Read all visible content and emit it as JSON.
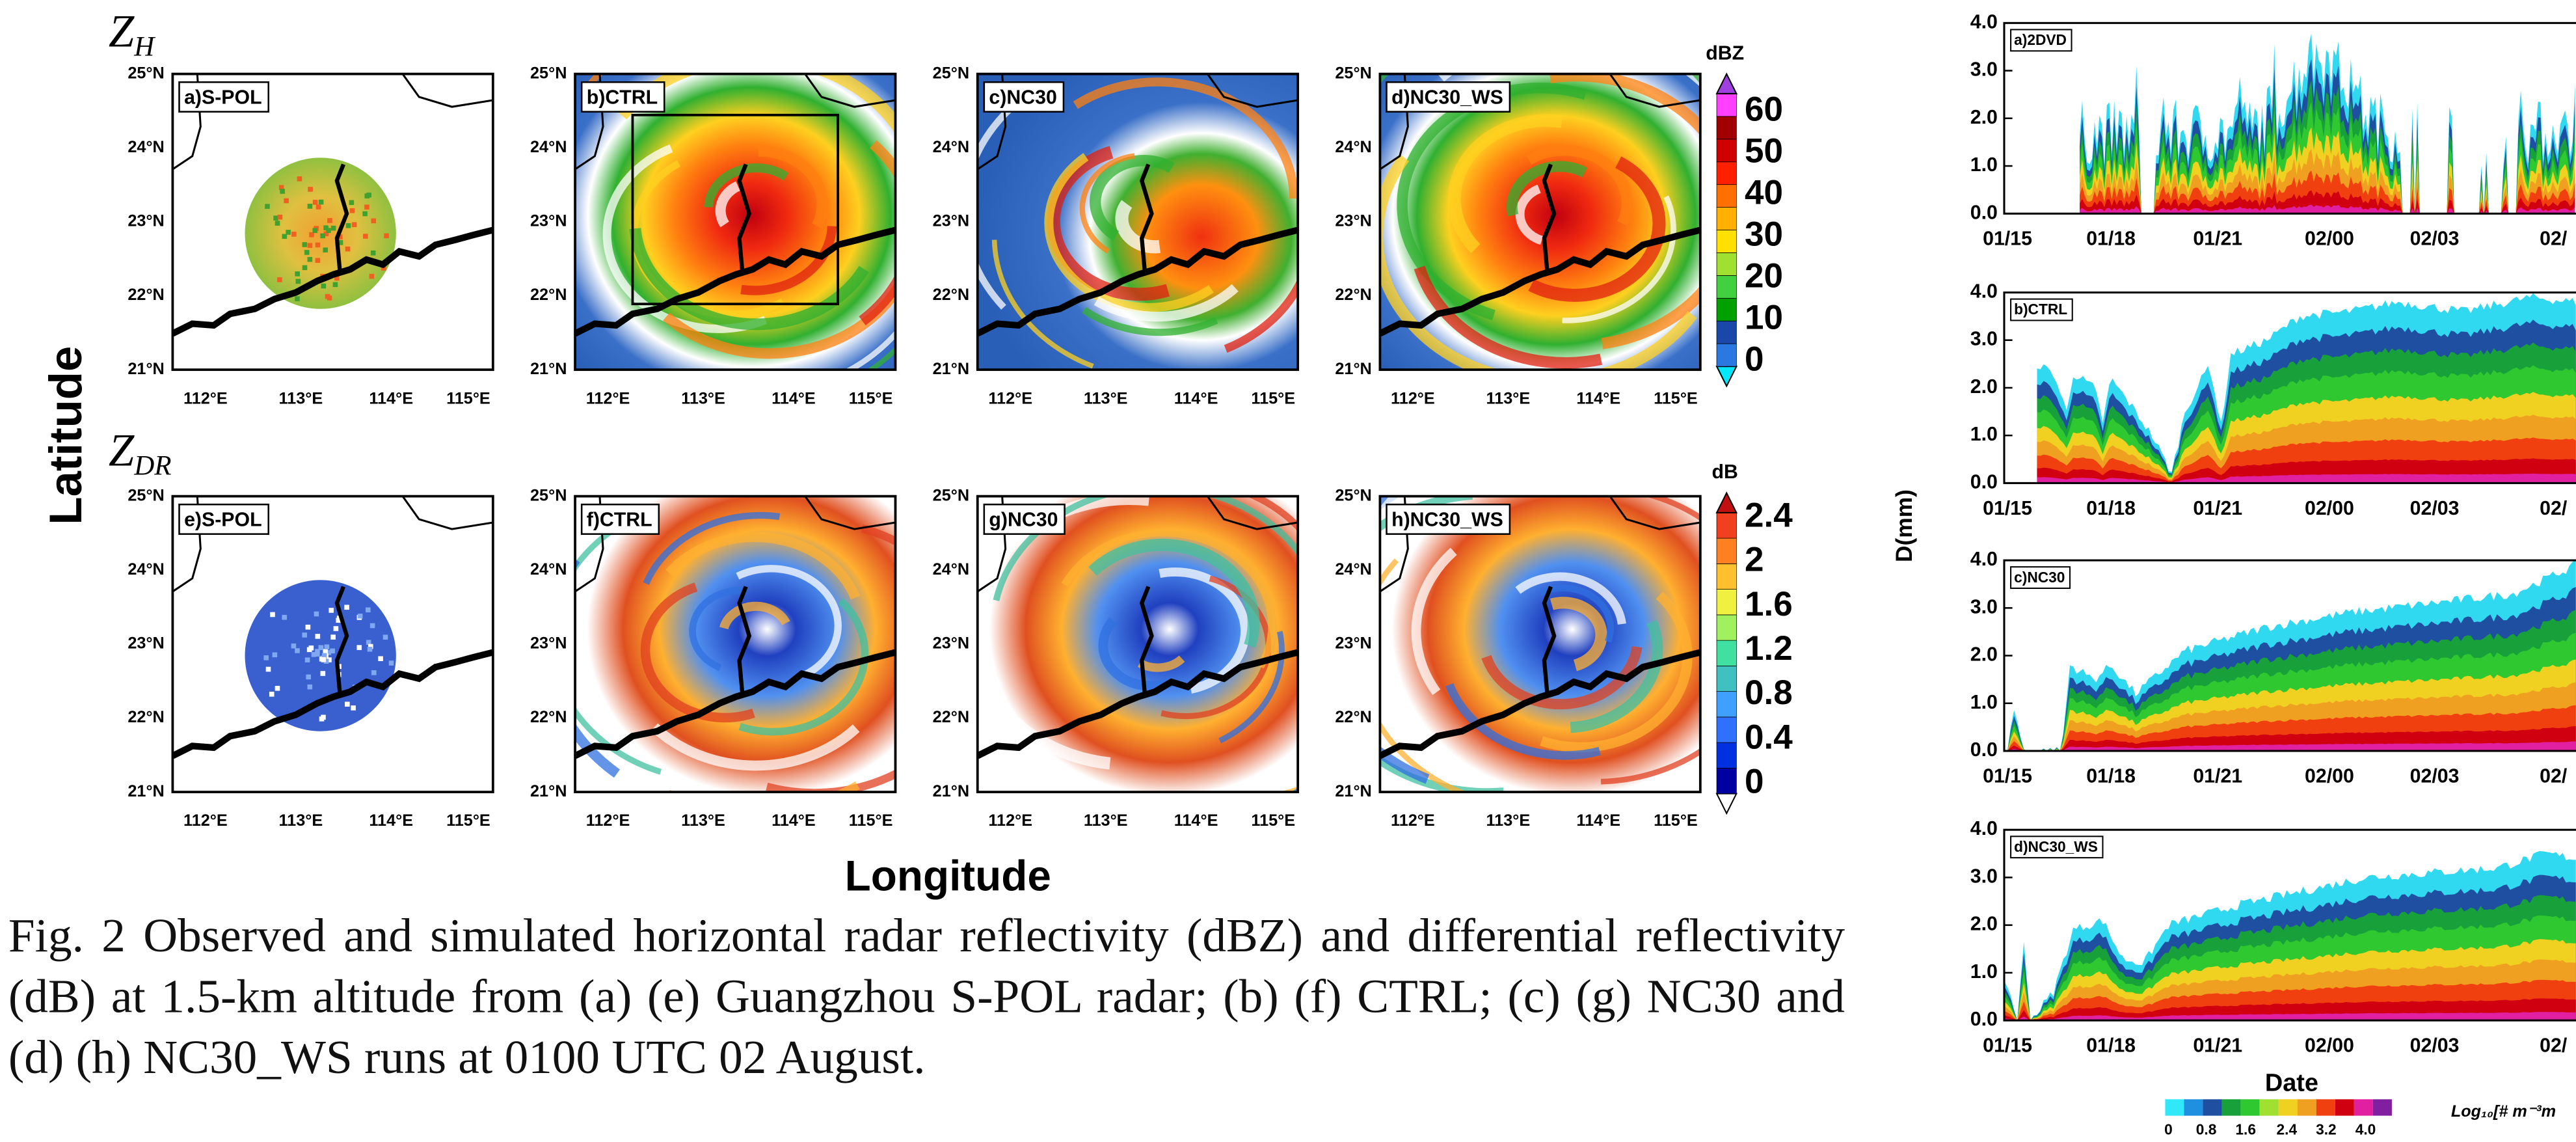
{
  "left_figure": {
    "row_titles": [
      {
        "symbol": "Z",
        "subscript": "H"
      },
      {
        "symbol": "Z",
        "subscript": "DR"
      }
    ],
    "panels": [
      {
        "label": "a)S-POL"
      },
      {
        "label": "b)CTRL"
      },
      {
        "label": "c)NC30"
      },
      {
        "label": "d)NC30_WS"
      },
      {
        "label": "e)S-POL"
      },
      {
        "label": "f)CTRL"
      },
      {
        "label": "g)NC30"
      },
      {
        "label": "h)NC30_WS"
      }
    ],
    "lat_ticks": [
      "25°N",
      "24°N",
      "23°N",
      "22°N",
      "21°N"
    ],
    "lon_ticks": [
      "112°E",
      "113°E",
      "114°E",
      "115°E"
    ],
    "y_label": "Latitude",
    "x_label": "Longitude",
    "colorbars": [
      {
        "unit": "dBZ",
        "ticks": [
          "60",
          "50",
          "40",
          "30",
          "20",
          "10",
          "0"
        ]
      },
      {
        "unit": "dB",
        "ticks": [
          "2.4",
          "2",
          "1.6",
          "1.2",
          "0.8",
          "0.4",
          "0"
        ]
      }
    ]
  },
  "caption": "Fig. 2 Observed and simulated horizontal radar reflectivity (dBZ) and differential reflectivity (dB) at 1.5-km altitude from (a) (e) Guangzhou S-POL radar; (b) (f) CTRL; (c) (g) NC30 and (d) (h) NC30_WS runs at 0100 UTC 02 August.",
  "right_figure": {
    "panels": [
      {
        "label": "a)2DVD"
      },
      {
        "label": "b)CTRL"
      },
      {
        "label": "c)NC30"
      },
      {
        "label": "d)NC30_WS"
      }
    ],
    "y_ticks": [
      "4.0",
      "3.0",
      "2.0",
      "1.0",
      "0.0"
    ],
    "x_ticks": [
      "01/15",
      "01/18",
      "01/21",
      "02/00",
      "02/03",
      "02/"
    ],
    "y_label": "D(mm)",
    "x_label": "Date",
    "legend_ticks": [
      "0",
      "0.8",
      "1.6",
      "2.4",
      "3.2",
      "4.0"
    ],
    "legend_label": "Log₁₀[# m⁻³m"
  }
}
